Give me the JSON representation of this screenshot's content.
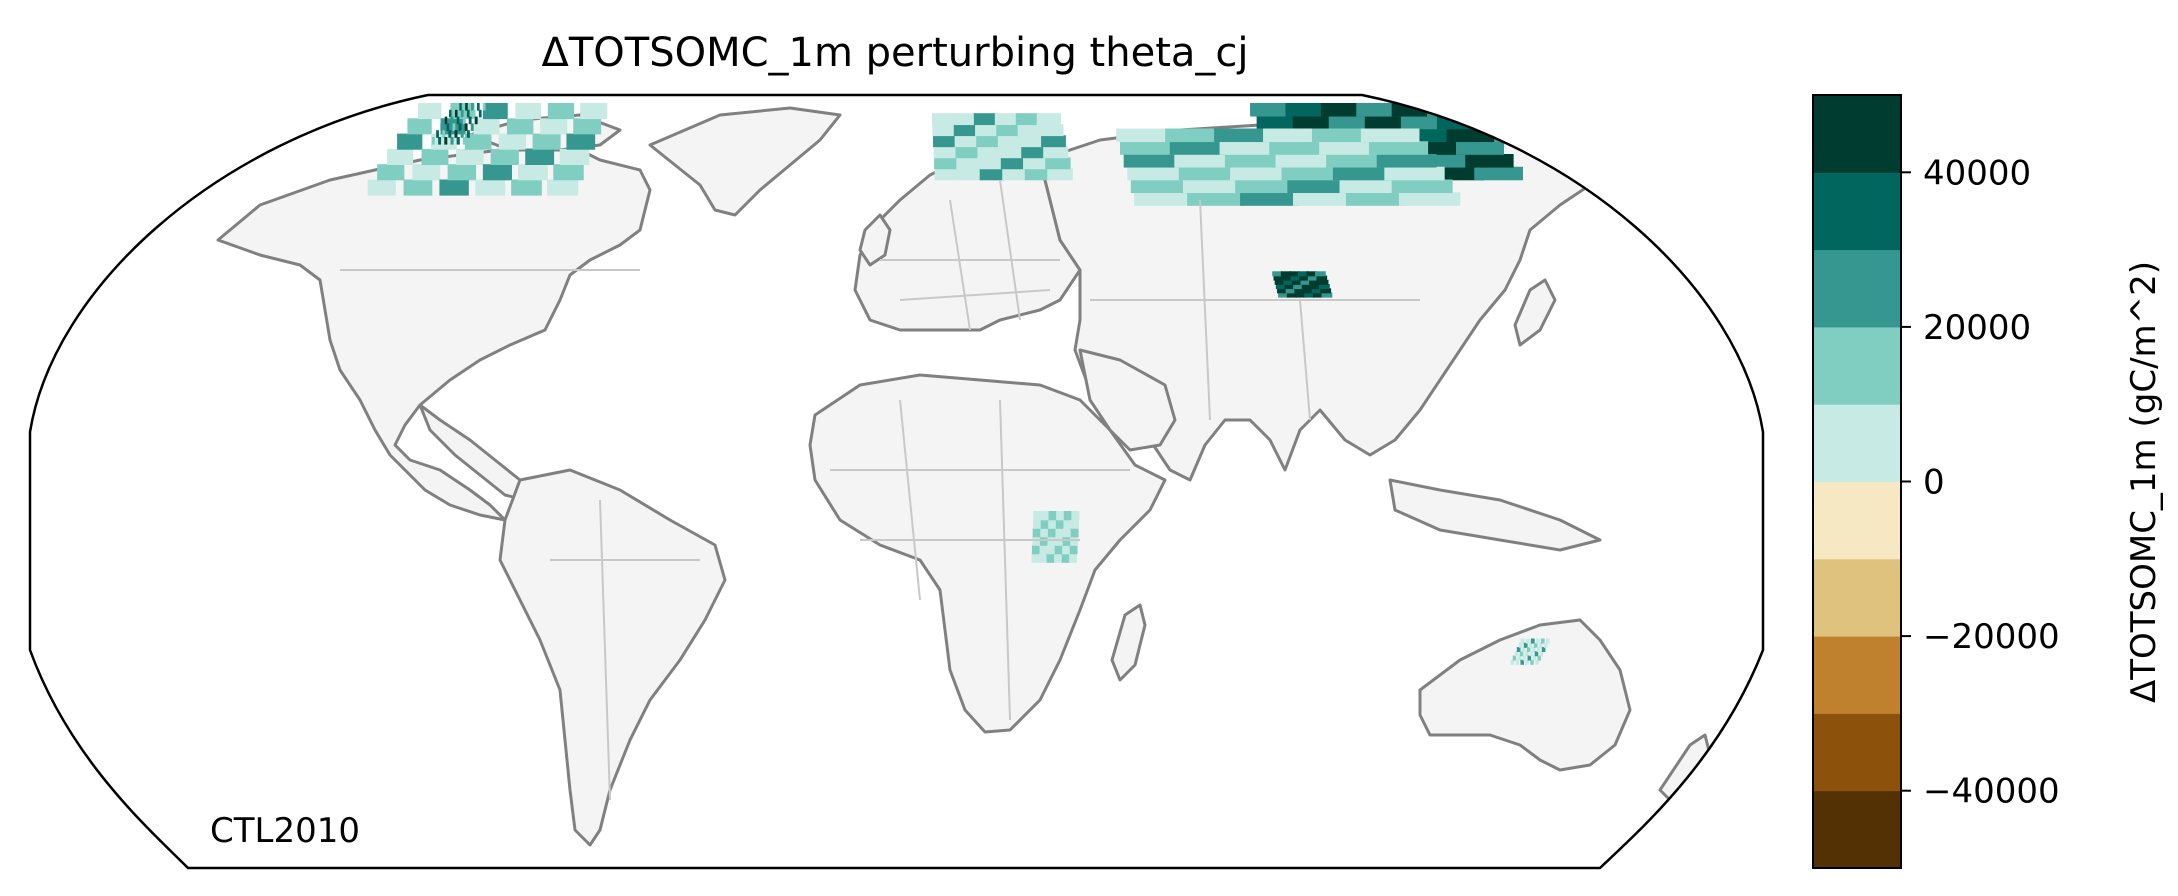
{
  "title": "ΔTOTSOMC_1m perturbing theta_cj",
  "caption": "CTL2010",
  "colorbar": {
    "label": "ΔTOTSOMC_1m (gC/m^2)",
    "min": -50000,
    "max": 50000,
    "step": 10000,
    "ticks": [
      {
        "value": 40000,
        "label": "40000"
      },
      {
        "value": 20000,
        "label": "20000"
      },
      {
        "value": 0,
        "label": "0"
      },
      {
        "value": -20000,
        "label": "−20000"
      },
      {
        "value": -40000,
        "label": "−40000"
      }
    ],
    "colors": [
      "#543005",
      "#8c510a",
      "#bf812d",
      "#dfc27d",
      "#f6e8c3",
      "#f5f5f5",
      "#c7eae5",
      "#80cdc1",
      "#35978f",
      "#01665e",
      "#003c30"
    ]
  },
  "map": {
    "projection": "Robinson",
    "land_color": "#f4f4f4",
    "coastline_color": "#808080",
    "border_color": "#c8c8c8"
  },
  "chart_data": {
    "type": "heatmap",
    "title": "ΔTOTSOMC_1m perturbing theta_cj",
    "colorbar_label": "ΔTOTSOMC_1m (gC/m^2)",
    "vlim": [
      -50000,
      50000
    ],
    "regions": [
      {
        "lon": [
          100,
          160
        ],
        "lat": [
          55,
          70
        ],
        "value": 35000
      },
      {
        "lon": [
          60,
          140
        ],
        "lat": [
          50,
          65
        ],
        "value": 10000
      },
      {
        "lon": [
          88,
          100
        ],
        "lat": [
          32,
          37
        ],
        "value": 40000
      },
      {
        "lon": [
          -135,
          -80
        ],
        "lat": [
          52,
          70
        ],
        "value": 12000
      },
      {
        "lon": [
          -125,
          -115
        ],
        "lat": [
          62,
          70
        ],
        "value": 30000
      },
      {
        "lon": [
          10,
          45
        ],
        "lat": [
          55,
          68
        ],
        "value": 8000
      },
      {
        "lon": [
          145,
          152
        ],
        "lat": [
          -40,
          -35
        ],
        "value": 8000
      },
      {
        "lon": [
          30,
          40
        ],
        "lat": [
          -20,
          -10
        ],
        "value": 6000
      }
    ]
  }
}
